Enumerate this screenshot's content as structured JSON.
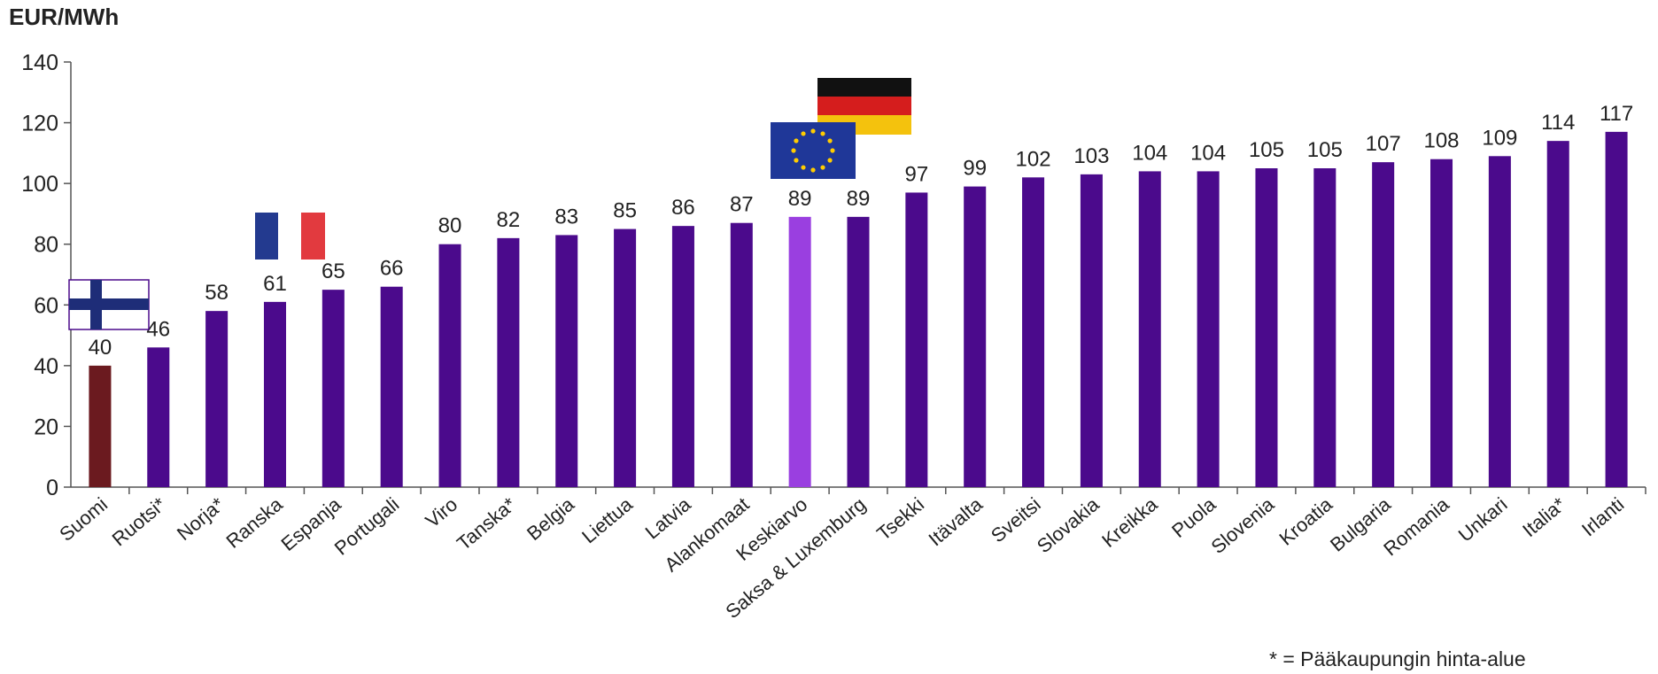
{
  "chart_data": {
    "type": "bar",
    "ylabel": "EUR/MWh",
    "ylim": [
      0,
      140
    ],
    "yticks": [
      0,
      20,
      40,
      60,
      80,
      100,
      120,
      140
    ],
    "grid": false,
    "categories": [
      "Suomi",
      "Ruotsi*",
      "Norja*",
      "Ranska",
      "Espanja",
      "Portugali",
      "Viro",
      "Tanska*",
      "Belgia",
      "Liettua",
      "Latvia",
      "Alankomaat",
      "Keskiarvo",
      "Saksa & Luxemburg",
      "Tsekki",
      "Itävalta",
      "Sveitsi",
      "Slovakia",
      "Kreikka",
      "Puola",
      "Slovenia",
      "Kroatia",
      "Bulgaria",
      "Romania",
      "Unkari",
      "Italia*",
      "Irlanti"
    ],
    "values": [
      40,
      46,
      58,
      61,
      65,
      66,
      80,
      82,
      83,
      85,
      86,
      87,
      89,
      89,
      97,
      99,
      102,
      103,
      104,
      104,
      105,
      105,
      107,
      108,
      109,
      114,
      117
    ],
    "value_labels": [
      "40",
      "46",
      "58",
      "61",
      "65",
      "66",
      "80",
      "82",
      "83",
      "85",
      "86",
      "87",
      "89",
      "89",
      "97",
      "99",
      "102",
      "103",
      "104",
      "104",
      "105",
      "105",
      "107",
      "108",
      "109",
      "114",
      "117"
    ],
    "colors": {
      "default": "#4b0a8c",
      "highlight_suomi": "#6b1a1f",
      "highlight_keskiarvo": "#9a3fe0"
    },
    "bar_colors": [
      "highlight_suomi",
      "default",
      "default",
      "default",
      "default",
      "default",
      "default",
      "default",
      "default",
      "default",
      "default",
      "default",
      "highlight_keskiarvo",
      "default",
      "default",
      "default",
      "default",
      "default",
      "default",
      "default",
      "default",
      "default",
      "default",
      "default",
      "default",
      "default",
      "default"
    ],
    "flags": [
      "finland-flag",
      "france-flag",
      "eu-flag",
      "germany-flag"
    ],
    "footnote": "* = Pääkaupungin hinta-alue"
  }
}
